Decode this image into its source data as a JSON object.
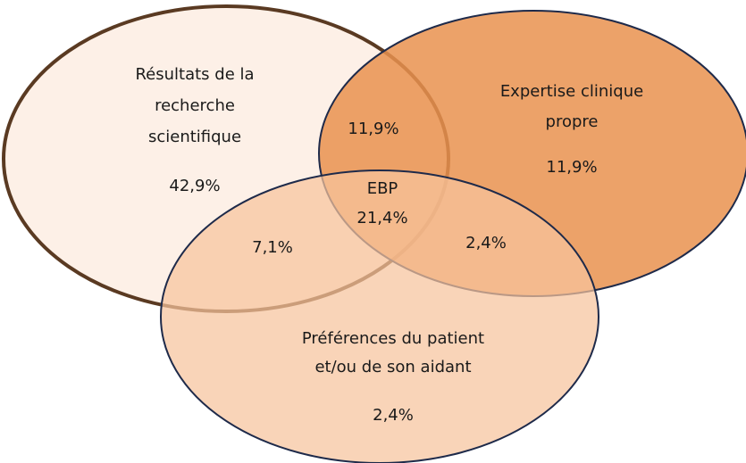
{
  "sets": [
    {
      "label": [
        "Résultats de la",
        "recherche",
        "scientifique"
      ],
      "value": "42,9%"
    },
    {
      "label": [
        "Expertise clinique",
        "propre"
      ],
      "value": "11,9%"
    },
    {
      "label": [
        "Préférences du patient",
        "et/ou de son aidant"
      ],
      "value": "2,4%"
    }
  ],
  "intersections": [
    {
      "value": "11,9%"
    },
    {
      "value": "7,1%"
    },
    {
      "value": "2,4%"
    },
    {
      "label": "EBP",
      "value": "21,4%"
    }
  ]
}
